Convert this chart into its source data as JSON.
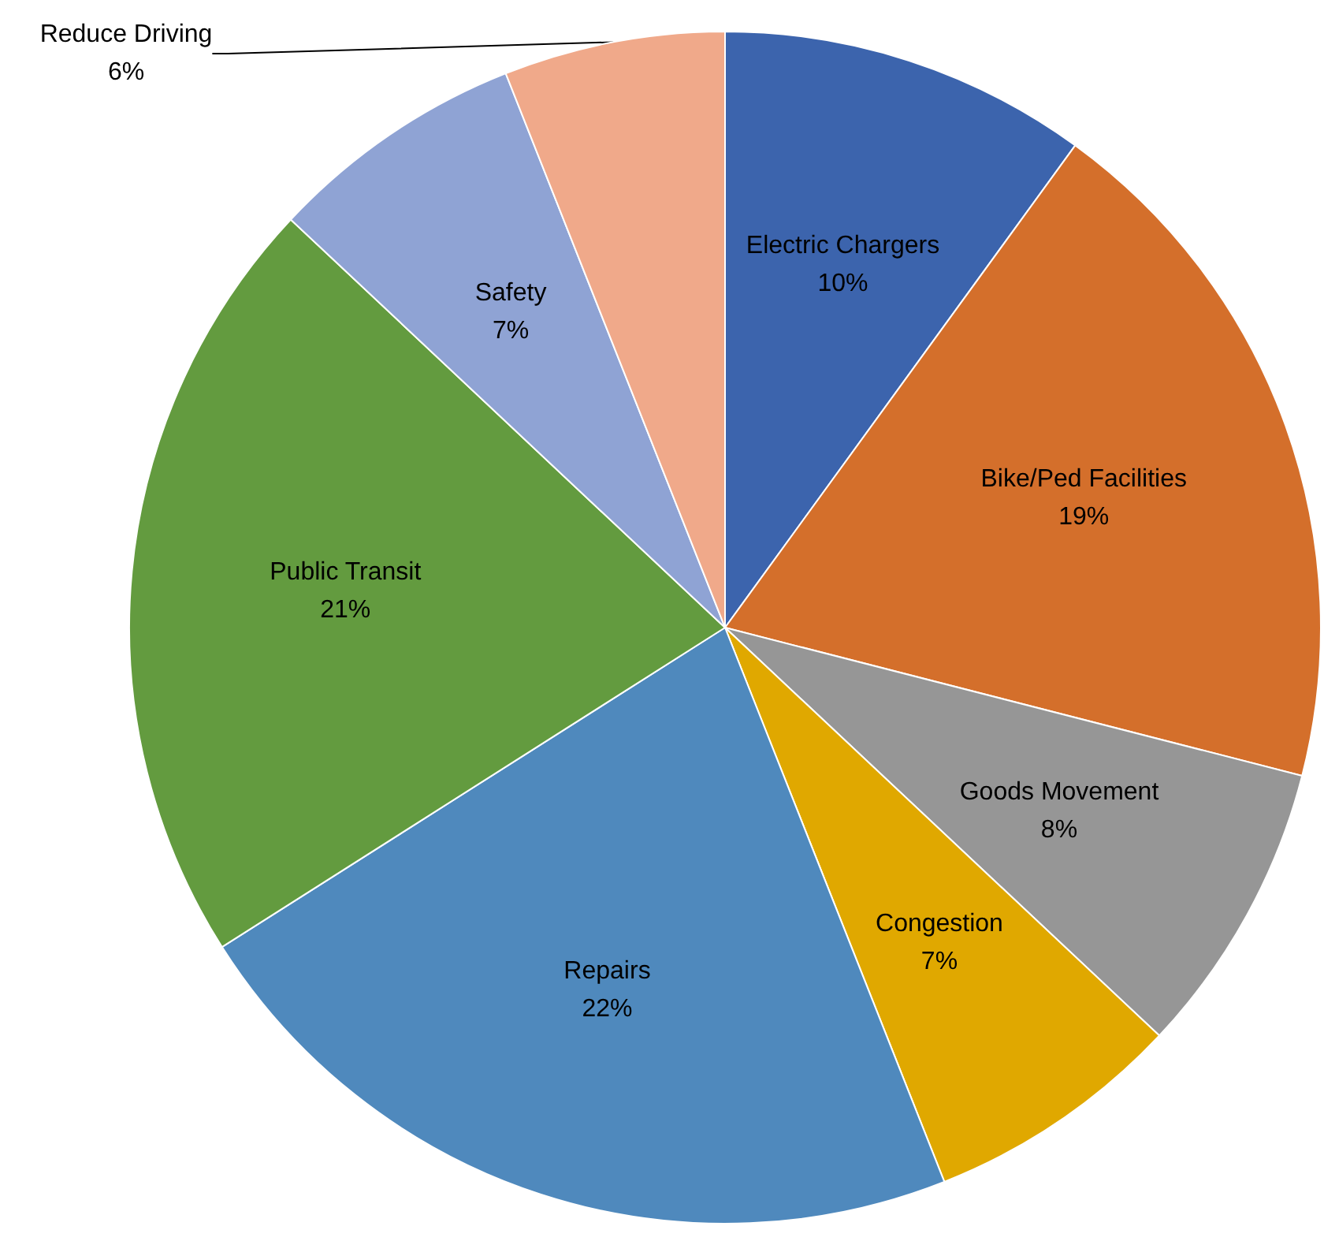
{
  "chart_data": {
    "type": "pie",
    "categories": [
      "Electric Chargers",
      "Bike/Ped Facilities",
      "Goods Movement",
      "Congestion",
      "Repairs",
      "Public Transit",
      "Safety",
      "Reduce Driving"
    ],
    "values": [
      10,
      19,
      8,
      7,
      22,
      21,
      7,
      6
    ],
    "value_labels": [
      "10%",
      "19%",
      "8%",
      "7%",
      "22%",
      "21%",
      "7%",
      "6%"
    ],
    "colors": [
      "#3c64ad",
      "#d46f2b",
      "#969696",
      "#e0a800",
      "#4f89bd",
      "#639b3f",
      "#8fa3d4",
      "#f0a98a"
    ]
  }
}
